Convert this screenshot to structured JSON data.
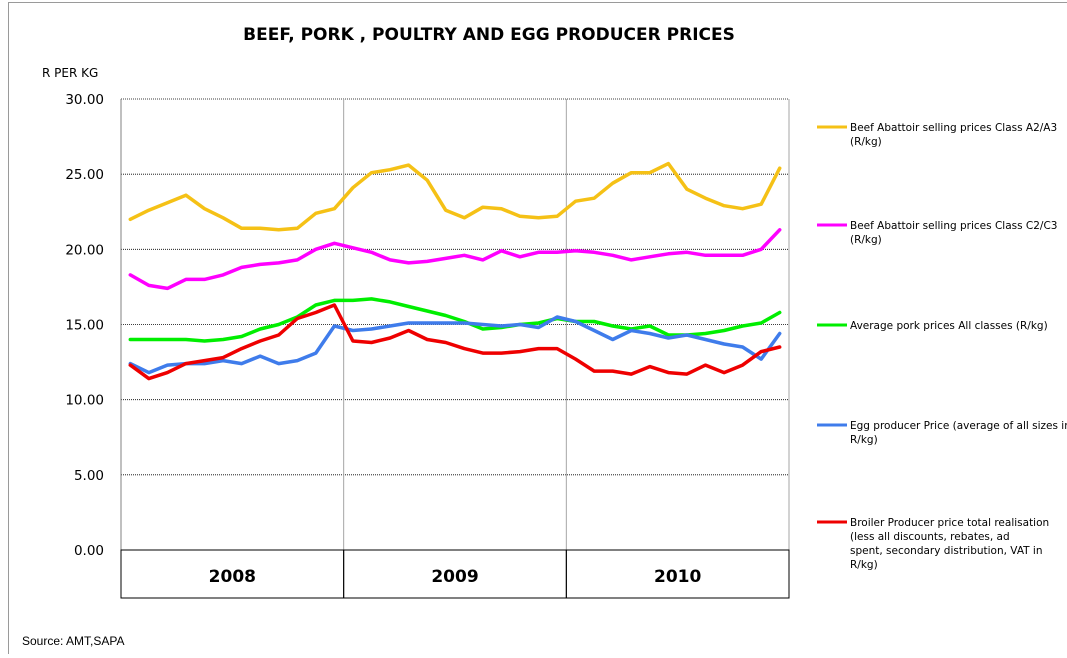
{
  "chart_data": {
    "type": "line",
    "title": "BEEF, PORK , POULTRY AND EGG PRODUCER PRICES",
    "ylabel": "R PER KG",
    "ylim": [
      0,
      30
    ],
    "yticks": [
      "0.00",
      "5.00",
      "10.00",
      "15.00",
      "20.00",
      "25.00",
      "30.00"
    ],
    "grid": "horizontal dotted",
    "legend_position": "right",
    "years": [
      "2008",
      "2009",
      "2010"
    ],
    "x": [
      "2008-01",
      "2008-02",
      "2008-03",
      "2008-04",
      "2008-05",
      "2008-06",
      "2008-07",
      "2008-08",
      "2008-09",
      "2008-10",
      "2008-11",
      "2008-12",
      "2009-01",
      "2009-02",
      "2009-03",
      "2009-04",
      "2009-05",
      "2009-06",
      "2009-07",
      "2009-08",
      "2009-09",
      "2009-10",
      "2009-11",
      "2009-12",
      "2010-01",
      "2010-02",
      "2010-03",
      "2010-04",
      "2010-05",
      "2010-06",
      "2010-07",
      "2010-08",
      "2010-09",
      "2010-10",
      "2010-11",
      "2010-12"
    ],
    "series": [
      {
        "name": "Beef Abattoir selling prices Class A2/A3 (R/kg)",
        "legend_lines": [
          "Beef Abattoir selling prices Class A2/A3",
          "(R/kg)"
        ],
        "color": "#F5C116",
        "values": [
          22.0,
          22.6,
          23.1,
          23.6,
          22.7,
          22.1,
          21.4,
          21.4,
          21.3,
          21.4,
          22.4,
          22.7,
          24.1,
          25.1,
          25.3,
          25.6,
          24.6,
          22.6,
          22.1,
          22.8,
          22.7,
          22.2,
          22.1,
          22.2,
          23.2,
          23.4,
          24.4,
          25.1,
          25.1,
          25.7,
          24.0,
          23.4,
          22.9,
          22.7,
          23.0,
          25.4
        ]
      },
      {
        "name": "Beef Abattoir selling prices Class C2/C3 (R/kg)",
        "legend_lines": [
          "Beef Abattoir selling prices Class C2/C3",
          "(R/kg)"
        ],
        "color": "#FF00FF",
        "values": [
          18.3,
          17.6,
          17.4,
          18.0,
          18.0,
          18.3,
          18.8,
          19.0,
          19.1,
          19.3,
          20.0,
          20.4,
          20.1,
          19.8,
          19.3,
          19.1,
          19.2,
          19.4,
          19.6,
          19.3,
          19.9,
          19.5,
          19.8,
          19.8,
          19.9,
          19.8,
          19.6,
          19.3,
          19.5,
          19.7,
          19.8,
          19.6,
          19.6,
          19.6,
          20.0,
          21.3
        ]
      },
      {
        "name": "Average pork prices All classes (R/kg)",
        "legend_lines": [
          "Average pork prices All classes (R/kg)"
        ],
        "color": "#00EE00",
        "values": [
          14.0,
          14.0,
          14.0,
          14.0,
          13.9,
          14.0,
          14.2,
          14.7,
          15.0,
          15.5,
          16.3,
          16.6,
          16.6,
          16.7,
          16.5,
          16.2,
          15.9,
          15.6,
          15.2,
          14.7,
          14.8,
          15.0,
          15.1,
          15.4,
          15.2,
          15.2,
          14.9,
          14.7,
          14.9,
          14.3,
          14.3,
          14.4,
          14.6,
          14.9,
          15.1,
          15.8
        ]
      },
      {
        "name": "Egg producer Price (average of all sizes in R/kg)",
        "legend_lines": [
          "Egg producer Price (average of all sizes in",
          "R/kg)"
        ],
        "color": "#3F7CEB",
        "values": [
          12.4,
          11.8,
          12.3,
          12.4,
          12.4,
          12.6,
          12.4,
          12.9,
          12.4,
          12.6,
          13.1,
          14.9,
          14.6,
          14.7,
          14.9,
          15.1,
          15.1,
          15.1,
          15.1,
          15.0,
          14.9,
          15.0,
          14.8,
          15.5,
          15.2,
          14.6,
          14.0,
          14.6,
          14.4,
          14.1,
          14.3,
          14.0,
          13.7,
          13.5,
          12.7,
          14.4
        ]
      },
      {
        "name": "Broiler Producer price total realisation (less all discounts, rebates, ad spent, secondary distribution, VAT in R/kg)",
        "legend_lines": [
          "Broiler Producer price total realisation",
          "(less all discounts, rebates, ad",
          "spent, secondary distribution, VAT in",
          "R/kg)"
        ],
        "color": "#EE0000",
        "values": [
          12.3,
          11.4,
          11.8,
          12.4,
          12.6,
          12.8,
          13.4,
          13.9,
          14.3,
          15.4,
          15.8,
          16.3,
          13.9,
          13.8,
          14.1,
          14.6,
          14.0,
          13.8,
          13.4,
          13.1,
          13.1,
          13.2,
          13.4,
          13.4,
          12.7,
          11.9,
          11.9,
          11.7,
          12.2,
          11.8,
          11.7,
          12.3,
          11.8,
          12.3,
          13.2,
          13.5
        ]
      }
    ]
  },
  "source_text": "Source: AMT,SAPA"
}
